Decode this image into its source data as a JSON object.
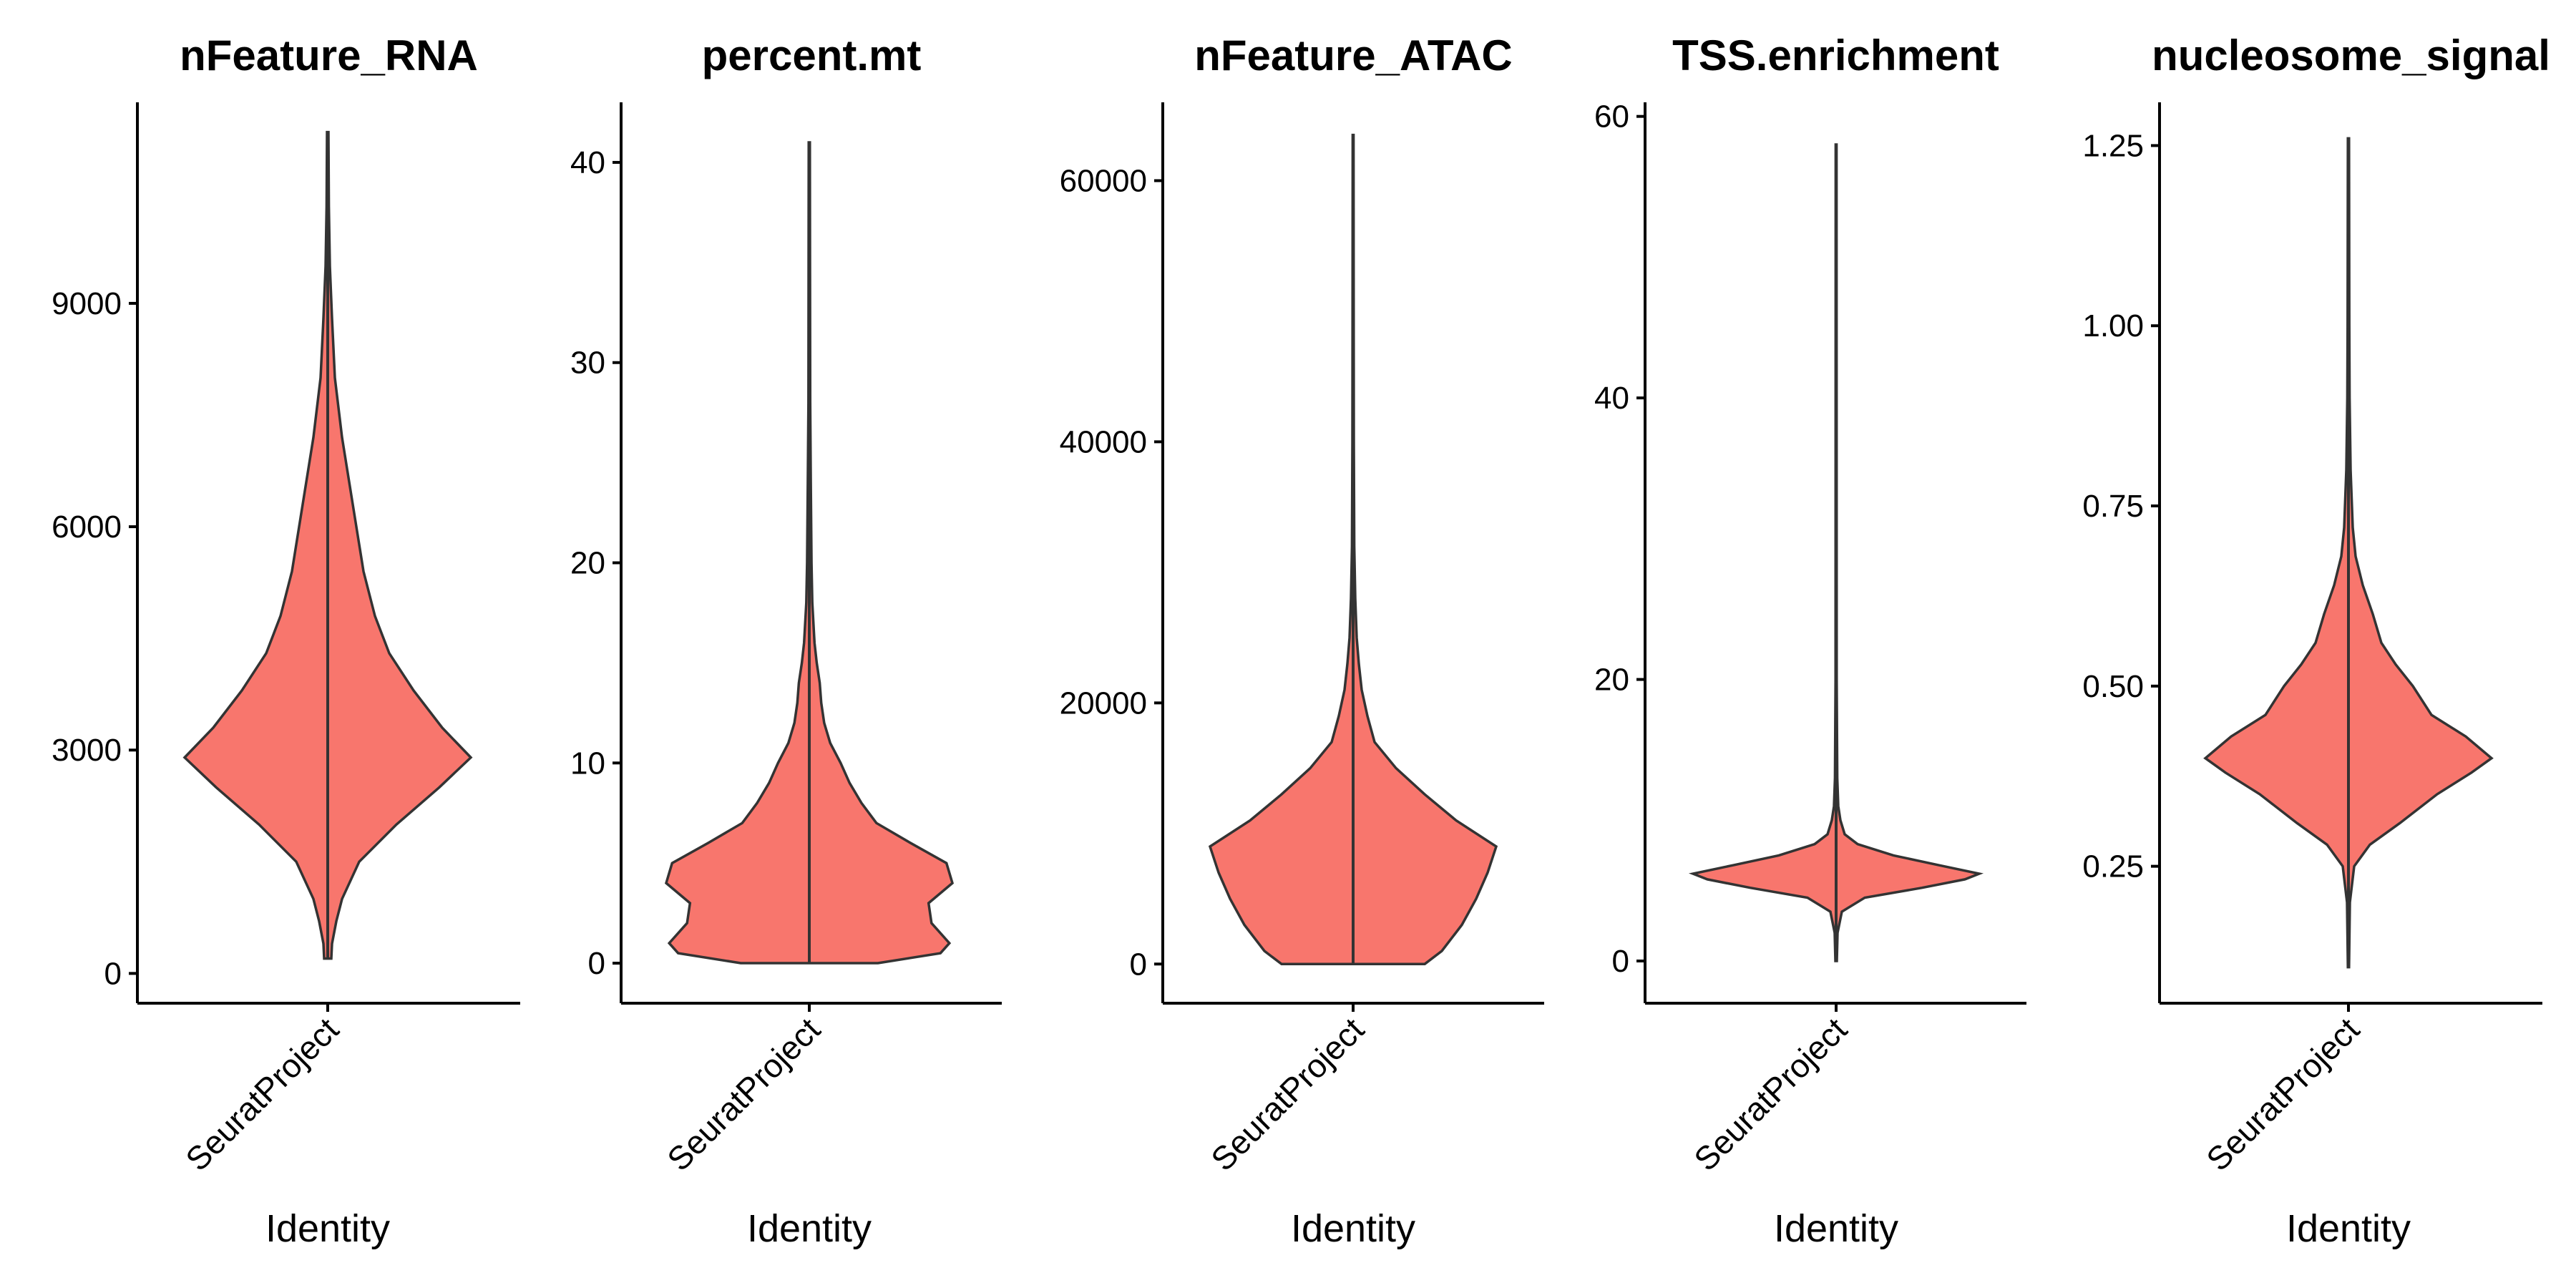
{
  "colors": {
    "violin_fill": "#F8766D",
    "outline": "#333333",
    "axis": "#000000"
  },
  "chart_data": [
    {
      "type": "violin",
      "title": "nFeature_RNA",
      "xlabel": "Identity",
      "ylabel": "",
      "categories": [
        "SeuratProject"
      ],
      "ylim": [
        -400,
        11700
      ],
      "yticks": [
        0,
        3000,
        6000,
        9000
      ],
      "ytick_labels": [
        "0",
        "3000",
        "6000",
        "9000"
      ],
      "data_range": [
        200,
        11300
      ],
      "density": [
        [
          200,
          0.025
        ],
        [
          400,
          0.03
        ],
        [
          700,
          0.06
        ],
        [
          1000,
          0.1
        ],
        [
          1500,
          0.22
        ],
        [
          2000,
          0.48
        ],
        [
          2500,
          0.78
        ],
        [
          2900,
          1.0
        ],
        [
          3300,
          0.8
        ],
        [
          3800,
          0.6
        ],
        [
          4300,
          0.43
        ],
        [
          4800,
          0.33
        ],
        [
          5400,
          0.25
        ],
        [
          6000,
          0.2
        ],
        [
          6600,
          0.15
        ],
        [
          7200,
          0.1
        ],
        [
          8000,
          0.05
        ],
        [
          8800,
          0.03
        ],
        [
          9500,
          0.015
        ],
        [
          10300,
          0.008
        ],
        [
          11300,
          0.005
        ]
      ]
    },
    {
      "type": "violin",
      "title": "percent.mt",
      "xlabel": "Identity",
      "ylabel": "",
      "categories": [
        "SeuratProject"
      ],
      "ylim": [
        -2,
        43
      ],
      "yticks": [
        0,
        10,
        20,
        30,
        40
      ],
      "ytick_labels": [
        "0",
        "10",
        "20",
        "30",
        "40"
      ],
      "data_range": [
        0,
        41
      ],
      "density": [
        [
          0,
          0.46
        ],
        [
          0.5,
          0.88
        ],
        [
          1,
          0.94
        ],
        [
          2,
          0.82
        ],
        [
          3,
          0.8
        ],
        [
          4,
          0.96
        ],
        [
          5,
          0.92
        ],
        [
          6,
          0.68
        ],
        [
          7,
          0.45
        ],
        [
          8,
          0.35
        ],
        [
          9,
          0.27
        ],
        [
          10,
          0.21
        ],
        [
          11,
          0.14
        ],
        [
          12,
          0.1
        ],
        [
          13,
          0.08
        ],
        [
          14,
          0.07
        ],
        [
          15,
          0.05
        ],
        [
          16,
          0.035
        ],
        [
          18,
          0.02
        ],
        [
          20,
          0.015
        ],
        [
          24,
          0.01
        ],
        [
          28,
          0.006
        ],
        [
          35,
          0.005
        ],
        [
          41,
          0.004
        ]
      ]
    },
    {
      "type": "violin",
      "title": "nFeature_ATAC",
      "xlabel": "Identity",
      "ylabel": "",
      "categories": [
        "SeuratProject"
      ],
      "ylim": [
        -3000,
        66000
      ],
      "yticks": [
        0,
        20000,
        40000,
        60000
      ],
      "ytick_labels": [
        "0",
        "20000",
        "40000",
        "60000"
      ],
      "data_range": [
        0,
        63500
      ],
      "density": [
        [
          0,
          0.5
        ],
        [
          1000,
          0.62
        ],
        [
          3000,
          0.76
        ],
        [
          5000,
          0.86
        ],
        [
          7000,
          0.94
        ],
        [
          9000,
          1.0
        ],
        [
          11000,
          0.72
        ],
        [
          13000,
          0.5
        ],
        [
          15000,
          0.3
        ],
        [
          17000,
          0.15
        ],
        [
          19000,
          0.1
        ],
        [
          21000,
          0.06
        ],
        [
          23000,
          0.04
        ],
        [
          25000,
          0.025
        ],
        [
          28000,
          0.015
        ],
        [
          32000,
          0.008
        ],
        [
          40000,
          0.005
        ],
        [
          50000,
          0.004
        ],
        [
          63500,
          0.003
        ]
      ]
    },
    {
      "type": "violin",
      "title": "TSS.enrichment",
      "xlabel": "Identity",
      "ylabel": "",
      "categories": [
        "SeuratProject"
      ],
      "ylim": [
        -3,
        61
      ],
      "yticks": [
        0,
        20,
        40,
        60
      ],
      "ytick_labels": [
        "0",
        "20",
        "40",
        "60"
      ],
      "data_range": [
        0,
        58
      ],
      "density": [
        [
          0,
          0.005
        ],
        [
          2,
          0.01
        ],
        [
          3.5,
          0.04
        ],
        [
          4.5,
          0.2
        ],
        [
          5.2,
          0.6
        ],
        [
          5.8,
          0.9
        ],
        [
          6.2,
          1.0
        ],
        [
          6.8,
          0.72
        ],
        [
          7.5,
          0.4
        ],
        [
          8.3,
          0.15
        ],
        [
          9,
          0.06
        ],
        [
          10,
          0.03
        ],
        [
          11,
          0.015
        ],
        [
          13,
          0.008
        ],
        [
          20,
          0.004
        ],
        [
          58,
          0.003
        ]
      ]
    },
    {
      "type": "violin",
      "title": "nucleosome_signal",
      "xlabel": "Identity",
      "ylabel": "",
      "categories": [
        "SeuratProject"
      ],
      "ylim": [
        0.06,
        1.31
      ],
      "yticks": [
        0.25,
        0.5,
        0.75,
        1.0,
        1.25
      ],
      "ytick_labels": [
        "0.25",
        "0.50",
        "0.75",
        "1.00",
        "1.25"
      ],
      "data_range": [
        0.11,
        1.26
      ],
      "density": [
        [
          0.11,
          0.004
        ],
        [
          0.2,
          0.01
        ],
        [
          0.25,
          0.04
        ],
        [
          0.28,
          0.15
        ],
        [
          0.31,
          0.36
        ],
        [
          0.35,
          0.62
        ],
        [
          0.38,
          0.86
        ],
        [
          0.4,
          1.0
        ],
        [
          0.43,
          0.82
        ],
        [
          0.46,
          0.58
        ],
        [
          0.5,
          0.45
        ],
        [
          0.53,
          0.33
        ],
        [
          0.56,
          0.23
        ],
        [
          0.6,
          0.17
        ],
        [
          0.64,
          0.1
        ],
        [
          0.68,
          0.05
        ],
        [
          0.72,
          0.03
        ],
        [
          0.8,
          0.015
        ],
        [
          0.9,
          0.008
        ],
        [
          1.0,
          0.006
        ],
        [
          1.26,
          0.004
        ]
      ]
    }
  ]
}
